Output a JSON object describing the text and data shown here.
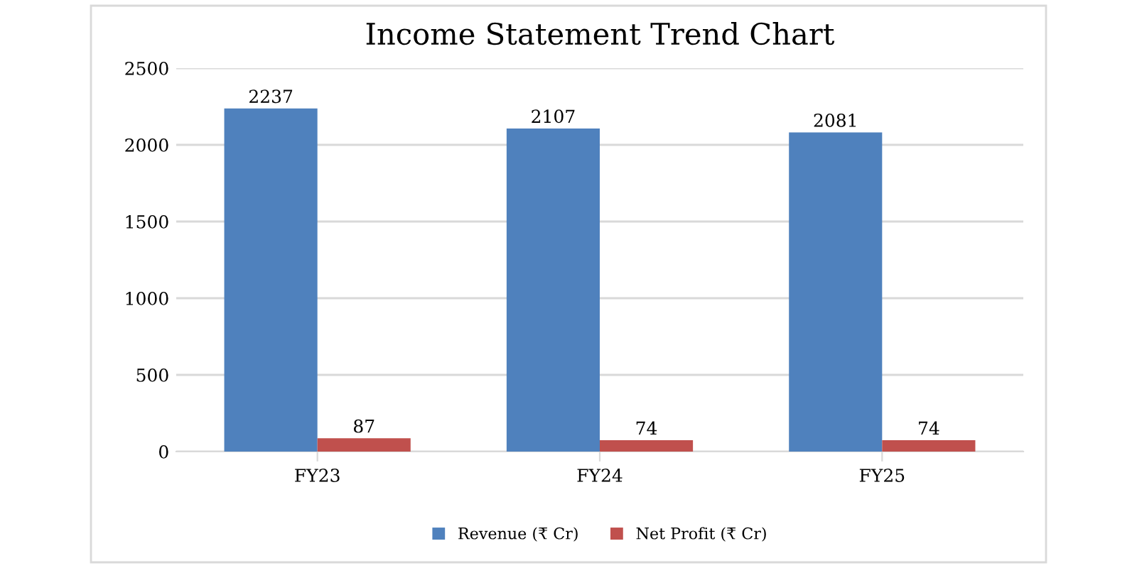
{
  "chart_data": {
    "type": "bar",
    "title": "Income Statement Trend Chart",
    "categories": [
      "FY23",
      "FY24",
      "FY25"
    ],
    "series": [
      {
        "name": "Revenue (₹ Cr)",
        "color": "#4f81bd",
        "values": [
          2237,
          2107,
          2081
        ]
      },
      {
        "name": "Net Profit (₹ Cr)",
        "color": "#c0504d",
        "values": [
          87,
          74,
          74
        ]
      }
    ],
    "ylim": [
      0,
      2500
    ],
    "yticks": [
      0,
      500,
      1000,
      1500,
      2000,
      2500
    ],
    "grid": "y",
    "legend": "bottom",
    "data_labels": true
  }
}
